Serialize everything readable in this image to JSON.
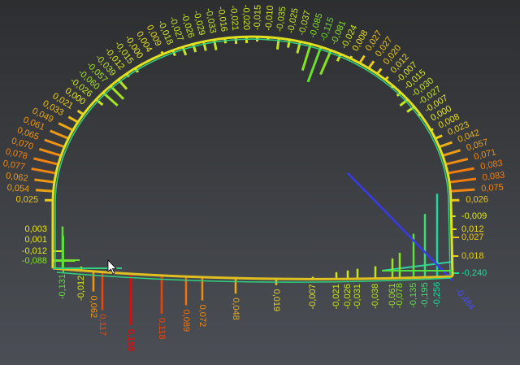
{
  "units_scale_note": "",
  "arch_labels": [
    "0,025",
    "0,054",
    "0,062",
    "0,077",
    "0,078",
    "0,070",
    "0,065",
    "0,061",
    "0,049",
    "0,033",
    "0,021",
    "0,000",
    "-0,026",
    "-0,060",
    "-0,057",
    "-0,039",
    "-0,012",
    "-0,015",
    "-0,000",
    "0,004",
    "0,009",
    "-0,018",
    "-0,027",
    "-0,026",
    "-0,029",
    "-0,033",
    "-0,016",
    "-0,021",
    "-0,020",
    "-0,015",
    "-0,010",
    "-0,035",
    "-0,025",
    "-0,037",
    "-0,085",
    "-0,115",
    "-0,081",
    "-0,024",
    "0,008",
    "0,027",
    "0,027",
    "0,020",
    "0,012",
    "-0,007",
    "-0,015",
    "-0,030",
    "-0,027",
    "-0,007",
    "0,000",
    "0,008",
    "0,023",
    "0,042",
    "0,057",
    "0,071",
    "0,083",
    "0,083",
    "0,075",
    "0,026"
  ],
  "left_wall_labels": [
    "0,003",
    "0,001",
    "-0,012",
    "-0,088"
  ],
  "right_wall_labels": [
    "-0,009",
    "0,012",
    "0,027",
    "0,018",
    "-0,240"
  ],
  "invert_labels": [
    "-0,131",
    "-0,012",
    "0,062",
    "0,117",
    "0,158",
    "0,118",
    "0,089",
    "0,072",
    "0,048",
    "0,019",
    "-0,007",
    "-0,021",
    "-0,026",
    "-0,031",
    "-0,038",
    "-0,061",
    "-0,078",
    "-0,135",
    "-0,195",
    "-0,256"
  ],
  "diagonal_label": "-0,484",
  "colors": {
    "positive_max": "#f00000",
    "zero": "#e8e820",
    "negative_max": "#20d8a0",
    "diagonal": "#3a3ae8"
  }
}
